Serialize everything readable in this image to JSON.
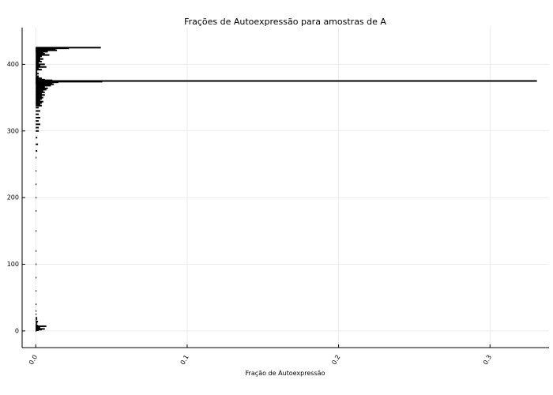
{
  "chart_data": {
    "type": "bar",
    "orientation": "horizontal",
    "title": "Frações de Autoexpressão para amostras de A",
    "xlabel": "Fração de Autoexpressão",
    "ylabel": "",
    "xlim": [
      -0.009,
      0.339
    ],
    "ylim": [
      -25,
      455
    ],
    "xticks": [
      0.0,
      0.1,
      0.2,
      0.3
    ],
    "xtick_labels": [
      "0.0",
      "0.1",
      "0.2",
      "0.3"
    ],
    "yticks": [
      0,
      100,
      200,
      300,
      400
    ],
    "ytick_labels": [
      "0",
      "100",
      "200",
      "300",
      "400"
    ],
    "grid": true,
    "legend": "none",
    "bar_color": "#000000",
    "series": [
      {
        "y": [
          0,
          1,
          2,
          3,
          4,
          5,
          6,
          7,
          8,
          9,
          10,
          12,
          14,
          16,
          18,
          20,
          25,
          30,
          40,
          60,
          80,
          100,
          120,
          150,
          180,
          200,
          220,
          240,
          260,
          270,
          280,
          290,
          300,
          305,
          310,
          315,
          320,
          325,
          330,
          335,
          338,
          340,
          342,
          344,
          346,
          348,
          350,
          352,
          354,
          356,
          358,
          360,
          362,
          364,
          366,
          368,
          370,
          371,
          372,
          373,
          374,
          375,
          376,
          377,
          378,
          379,
          380,
          382,
          384,
          386,
          388,
          390,
          392,
          394,
          396,
          398,
          400,
          402,
          404,
          406,
          408,
          410,
          412,
          414,
          416,
          418,
          419,
          420,
          421,
          422,
          423,
          424,
          425
        ],
        "x": [
          0.0005,
          0.002,
          0.004,
          0.006,
          0.003,
          0.002,
          0.003,
          0.007,
          0.0015,
          0.001,
          0.0005,
          0.001,
          0.0015,
          0.0005,
          0.001,
          0.0008,
          0.0005,
          0.0005,
          0.0005,
          0.0005,
          0.0005,
          0.0005,
          0.0005,
          0.0005,
          0.0005,
          0.0005,
          0.0005,
          0.0005,
          0.0005,
          0.001,
          0.0015,
          0.001,
          0.002,
          0.002,
          0.003,
          0.002,
          0.003,
          0.002,
          0.003,
          0.002,
          0.004,
          0.003,
          0.004,
          0.005,
          0.003,
          0.004,
          0.005,
          0.004,
          0.006,
          0.004,
          0.006,
          0.005,
          0.007,
          0.008,
          0.006,
          0.01,
          0.012,
          0.009,
          0.011,
          0.015,
          0.044,
          0.331,
          0.011,
          0.006,
          0.003,
          0.004,
          0.002,
          0.002,
          0.001,
          0.002,
          0.001,
          0.001,
          0.004,
          0.002,
          0.007,
          0.003,
          0.006,
          0.002,
          0.004,
          0.003,
          0.005,
          0.003,
          0.004,
          0.009,
          0.006,
          0.005,
          0.008,
          0.005,
          0.014,
          0.01,
          0.013,
          0.022,
          0.043
        ]
      }
    ]
  }
}
